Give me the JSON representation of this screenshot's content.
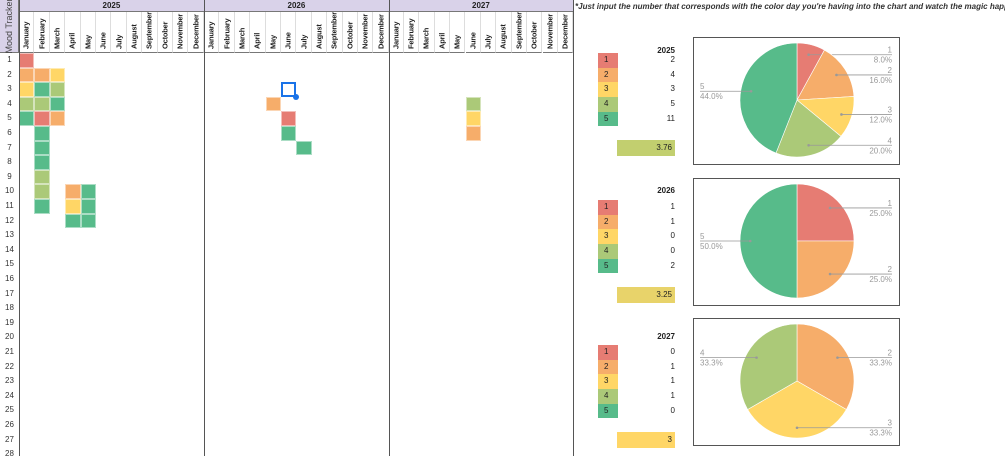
{
  "title": "Mood Tracker",
  "note": "*Just input the number that corresponds with the color day you're having into the chart and watch the magic happen!",
  "months": [
    "January",
    "February",
    "March",
    "April",
    "May",
    "June",
    "July",
    "August",
    "September",
    "October",
    "November",
    "December"
  ],
  "row_labels": [
    "1",
    "2",
    "3",
    "4",
    "5",
    "6",
    "7",
    "8",
    "9",
    "10",
    "11",
    "12",
    "13",
    "14",
    "15",
    "16",
    "17",
    "18",
    "19",
    "20",
    "21",
    "22",
    "23",
    "24",
    "25",
    "26",
    "27",
    "28"
  ],
  "mood_colors": {
    "1": "#e67c73",
    "2": "#f6ad6a",
    "3": "#ffd666",
    "4": "#abc978",
    "5": "#57bb8a"
  },
  "selected_cell": {
    "year": "2026",
    "month": "June",
    "day": 3
  },
  "years": [
    {
      "label": "2025",
      "entries": [
        [
          "January",
          1,
          1
        ],
        [
          "January",
          2,
          2
        ],
        [
          "February",
          2,
          2
        ],
        [
          "March",
          2,
          3
        ],
        [
          "January",
          3,
          3
        ],
        [
          "February",
          3,
          5
        ],
        [
          "March",
          3,
          4
        ],
        [
          "January",
          4,
          4
        ],
        [
          "February",
          4,
          4
        ],
        [
          "March",
          4,
          5
        ],
        [
          "January",
          5,
          5
        ],
        [
          "February",
          5,
          1
        ],
        [
          "March",
          5,
          2
        ],
        [
          "February",
          6,
          5
        ],
        [
          "February",
          7,
          5
        ],
        [
          "February",
          8,
          5
        ],
        [
          "February",
          9,
          4
        ],
        [
          "February",
          10,
          4
        ],
        [
          "February",
          11,
          5
        ],
        [
          "April",
          10,
          2
        ],
        [
          "April",
          11,
          3
        ],
        [
          "April",
          12,
          5
        ],
        [
          "May",
          10,
          5
        ],
        [
          "May",
          11,
          5
        ],
        [
          "May",
          12,
          5
        ]
      ]
    },
    {
      "label": "2026",
      "entries": [
        [
          "May",
          4,
          2
        ],
        [
          "June",
          5,
          1
        ],
        [
          "June",
          6,
          5
        ],
        [
          "July",
          7,
          5
        ]
      ]
    },
    {
      "label": "2027",
      "entries": [
        [
          "June",
          4,
          4
        ],
        [
          "June",
          5,
          3
        ],
        [
          "June",
          6,
          2
        ]
      ]
    }
  ],
  "summaries": [
    {
      "year": "2025",
      "levels": [
        "1",
        "2",
        "3",
        "4",
        "5"
      ],
      "counts": [
        2,
        4,
        3,
        5,
        11
      ],
      "average": "3.76",
      "average_color": "#c2cf6f",
      "chart": {
        "type": "pie",
        "labels": [
          "1",
          "2",
          "3",
          "4",
          "5"
        ],
        "values": [
          2,
          4,
          3,
          5,
          11
        ],
        "percents": [
          "8.0%",
          "16.0%",
          "12.0%",
          "20.0%",
          "44.0%"
        ]
      }
    },
    {
      "year": "2026",
      "levels": [
        "1",
        "2",
        "3",
        "4",
        "5"
      ],
      "counts": [
        1,
        1,
        0,
        0,
        2
      ],
      "average": "3.25",
      "average_color": "#e8d36a",
      "chart": {
        "type": "pie",
        "labels": [
          "1",
          "2",
          "3",
          "4",
          "5"
        ],
        "values": [
          1,
          1,
          0,
          0,
          2
        ],
        "percents": [
          "25.0%",
          "25.0%",
          "",
          "",
          "50.0%"
        ]
      }
    },
    {
      "year": "2027",
      "levels": [
        "1",
        "2",
        "3",
        "4",
        "5"
      ],
      "counts": [
        0,
        1,
        1,
        1,
        0
      ],
      "average": "3",
      "average_color": "#ffd666",
      "chart": {
        "type": "pie",
        "labels": [
          "1",
          "2",
          "3",
          "4",
          "5"
        ],
        "values": [
          0,
          1,
          1,
          1,
          0
        ],
        "percents": [
          "",
          "33.3%",
          "33.3%",
          "33.3%",
          ""
        ]
      }
    }
  ]
}
